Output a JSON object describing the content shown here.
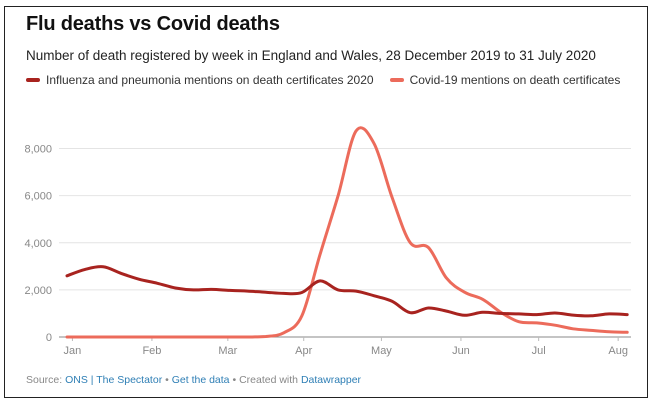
{
  "header": {
    "title": "Flu deaths vs Covid deaths",
    "subtitle": "Number of death registered by week in England and Wales, 28 December 2019 to 31 July 2020"
  },
  "footer": {
    "source_label": "Source:",
    "source_link": "ONS | The Spectator",
    "sep1": "•",
    "data_link": "Get the data",
    "sep2": "•",
    "created_label": "Created with",
    "created_link": "Datawrapper"
  },
  "chart_data": {
    "type": "line",
    "xlabel": "",
    "ylabel": "",
    "ylim": [
      0,
      9000
    ],
    "xlim": [
      0,
      31.1
    ],
    "yticks": [
      0,
      2000,
      4000,
      6000,
      8000
    ],
    "ytick_labels": [
      "0",
      "2,000",
      "4,000",
      "6,000",
      "8,000"
    ],
    "xticks": [
      {
        "label": "Jan",
        "x": 0.3
      },
      {
        "label": "Feb",
        "x": 4.7
      },
      {
        "label": "Mar",
        "x": 8.9
      },
      {
        "label": "Apr",
        "x": 13.1
      },
      {
        "label": "May",
        "x": 17.4
      },
      {
        "label": "Jun",
        "x": 21.8
      },
      {
        "label": "Jul",
        "x": 26.1
      },
      {
        "label": "Aug",
        "x": 30.5
      }
    ],
    "grid": true,
    "legend_position": "top-left",
    "series": [
      {
        "name": "Influenza and pneumonia mentions on death certificates 2020",
        "color": "#a8231f",
        "x": [
          0,
          1,
          2,
          3,
          4,
          5,
          6,
          7,
          8,
          9,
          10,
          11,
          12,
          13,
          14,
          15,
          16,
          17,
          18,
          19,
          20,
          21,
          22,
          23,
          24,
          25,
          26,
          27,
          28,
          29,
          30,
          31
        ],
        "values": [
          2600,
          2870,
          2980,
          2700,
          2450,
          2280,
          2080,
          2000,
          2020,
          1980,
          1950,
          1900,
          1850,
          1890,
          2380,
          2000,
          1950,
          1750,
          1510,
          1030,
          1230,
          1100,
          920,
          1050,
          1000,
          980,
          950,
          1020,
          930,
          900,
          980,
          950
        ]
      },
      {
        "name": "Covid-19 mentions on death certificates",
        "color": "#ec6b5b",
        "x": [
          0,
          1,
          2,
          3,
          4,
          5,
          6,
          7,
          8,
          9,
          10,
          11,
          12,
          13,
          14,
          15,
          16,
          17,
          18,
          19,
          20,
          21,
          22,
          23,
          24,
          25,
          26,
          27,
          28,
          29,
          30,
          31
        ],
        "values": [
          0,
          0,
          0,
          0,
          0,
          0,
          0,
          0,
          0,
          0,
          0,
          20,
          180,
          900,
          3500,
          6000,
          8750,
          8200,
          5900,
          4000,
          3800,
          2500,
          1900,
          1600,
          1050,
          650,
          600,
          500,
          350,
          280,
          220,
          200
        ]
      }
    ]
  }
}
